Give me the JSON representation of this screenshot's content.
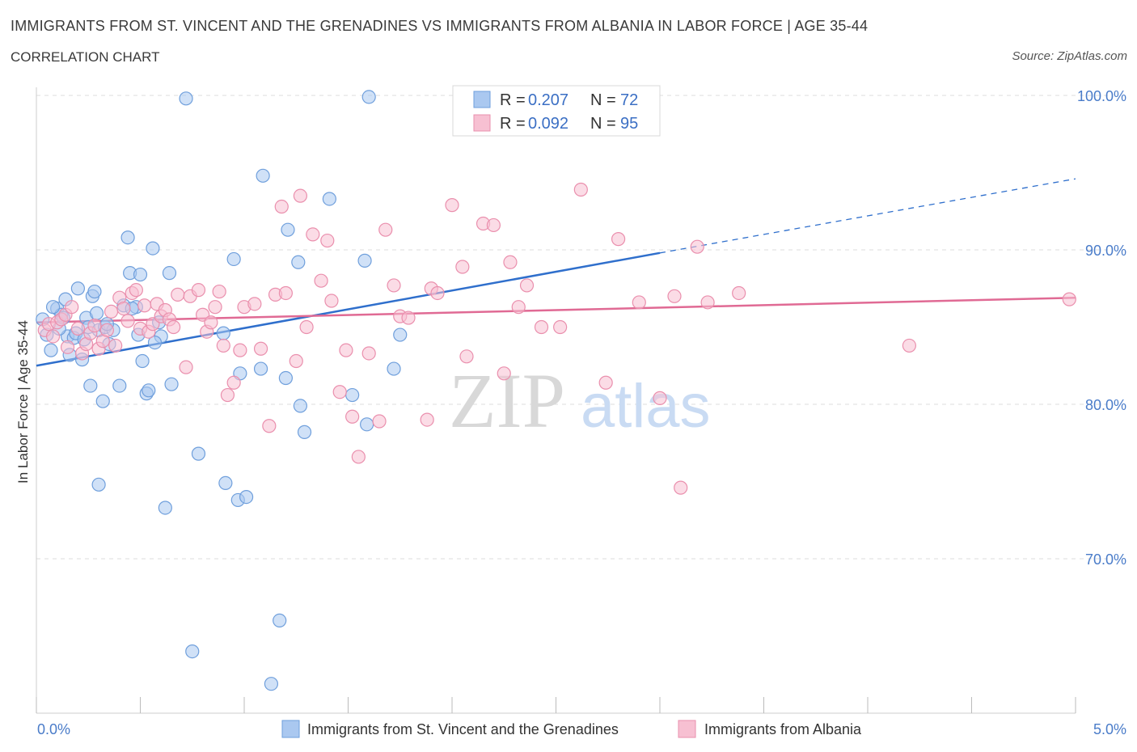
{
  "header": {
    "title": "IMMIGRANTS FROM ST. VINCENT AND THE GRENADINES VS IMMIGRANTS FROM ALBANIA IN LABOR FORCE | AGE 35-44",
    "subtitle": "CORRELATION CHART",
    "source": "Source: ZipAtlas.com"
  },
  "watermark": {
    "zip": "ZIP",
    "atlas": "atlas"
  },
  "legend": {
    "r_label": "R =",
    "n_label": "N =",
    "entries": [
      {
        "r": "0.207",
        "n": "72"
      },
      {
        "r": "0.092",
        "n": "95"
      }
    ]
  },
  "bottom_legend": [
    "Immigrants from St. Vincent and the Grenadines",
    "Immigrants from Albania"
  ],
  "colors": {
    "blue_fill": "#aac8f0",
    "blue_stroke": "#6f9fdc",
    "blue_line": "#2f6fcc",
    "pink_fill": "#f7c0d2",
    "pink_stroke": "#ea8fad",
    "pink_line": "#e06a94",
    "axis_label": "#4a7cc9",
    "grid": "#dddddd"
  },
  "chart_data": {
    "type": "scatter",
    "ylabel": "In Labor Force | Age 35-44",
    "xlim": [
      0,
      5
    ],
    "ylim": [
      60,
      100
    ],
    "x_tick_labels": [
      "0.0%",
      "5.0%"
    ],
    "y_tick_labels": [
      "70.0%",
      "80.0%",
      "90.0%",
      "100.0%"
    ],
    "y_ticks": [
      70,
      80,
      90,
      100
    ],
    "grid": true,
    "legend_position": "top-center",
    "series": [
      {
        "name": "Immigrants from St. Vincent and the Grenadines",
        "color": "blue",
        "trend": {
          "x0": 0.0,
          "y0": 82.5,
          "x1": 3.0,
          "y1": 89.8,
          "dash_x1": 5.0,
          "dash_y1": 94.6
        },
        "points": [
          [
            0.03,
            85.5
          ],
          [
            0.05,
            84.5
          ],
          [
            0.07,
            83.5
          ],
          [
            0.1,
            86.2
          ],
          [
            0.12,
            85.8
          ],
          [
            0.14,
            86.8
          ],
          [
            0.15,
            84.4
          ],
          [
            0.16,
            83.2
          ],
          [
            0.18,
            84.3
          ],
          [
            0.2,
            87.5
          ],
          [
            0.22,
            82.9
          ],
          [
            0.24,
            85.6
          ],
          [
            0.25,
            85.0
          ],
          [
            0.26,
            81.2
          ],
          [
            0.27,
            87.0
          ],
          [
            0.28,
            87.3
          ],
          [
            0.29,
            85.9
          ],
          [
            0.3,
            84.8
          ],
          [
            0.32,
            80.2
          ],
          [
            0.33,
            85.0
          ],
          [
            0.35,
            83.9
          ],
          [
            0.37,
            84.8
          ],
          [
            0.4,
            81.2
          ],
          [
            0.42,
            86.4
          ],
          [
            0.44,
            90.8
          ],
          [
            0.45,
            88.5
          ],
          [
            0.48,
            86.3
          ],
          [
            0.49,
            84.5
          ],
          [
            0.5,
            88.4
          ],
          [
            0.51,
            82.8
          ],
          [
            0.53,
            80.7
          ],
          [
            0.54,
            80.9
          ],
          [
            0.56,
            90.1
          ],
          [
            0.59,
            85.3
          ],
          [
            0.6,
            84.4
          ],
          [
            0.62,
            73.3
          ],
          [
            0.64,
            88.5
          ],
          [
            0.65,
            81.3
          ],
          [
            0.72,
            99.8
          ],
          [
            0.75,
            64.0
          ],
          [
            0.78,
            76.8
          ],
          [
            0.9,
            84.6
          ],
          [
            0.91,
            74.9
          ],
          [
            0.95,
            89.4
          ],
          [
            0.97,
            73.8
          ],
          [
            0.98,
            82.0
          ],
          [
            1.01,
            74.0
          ],
          [
            1.08,
            82.3
          ],
          [
            1.09,
            94.8
          ],
          [
            1.13,
            61.9
          ],
          [
            1.17,
            66.0
          ],
          [
            1.2,
            81.7
          ],
          [
            1.21,
            91.3
          ],
          [
            1.26,
            89.2
          ],
          [
            1.27,
            79.9
          ],
          [
            1.29,
            78.2
          ],
          [
            1.41,
            93.3
          ],
          [
            1.52,
            80.6
          ],
          [
            1.58,
            89.3
          ],
          [
            1.59,
            78.7
          ],
          [
            1.6,
            99.9
          ],
          [
            1.72,
            82.3
          ],
          [
            1.75,
            84.5
          ],
          [
            0.3,
            74.8
          ],
          [
            0.08,
            86.3
          ],
          [
            0.11,
            84.9
          ],
          [
            0.19,
            84.6
          ],
          [
            0.23,
            84.2
          ],
          [
            0.34,
            85.2
          ],
          [
            0.46,
            86.2
          ],
          [
            0.57,
            84.0
          ],
          [
            0.13,
            85.6
          ]
        ]
      },
      {
        "name": "Immigrants from Albania",
        "color": "pink",
        "trend": {
          "x0": 0.0,
          "y0": 85.3,
          "x1": 5.0,
          "y1": 86.9
        },
        "points": [
          [
            0.04,
            84.8
          ],
          [
            0.06,
            85.2
          ],
          [
            0.08,
            84.4
          ],
          [
            0.1,
            85.3
          ],
          [
            0.12,
            85.5
          ],
          [
            0.14,
            85.8
          ],
          [
            0.15,
            83.7
          ],
          [
            0.17,
            86.3
          ],
          [
            0.2,
            84.9
          ],
          [
            0.22,
            83.3
          ],
          [
            0.24,
            83.9
          ],
          [
            0.26,
            84.6
          ],
          [
            0.28,
            85.1
          ],
          [
            0.3,
            83.6
          ],
          [
            0.32,
            84.1
          ],
          [
            0.34,
            84.8
          ],
          [
            0.36,
            86.0
          ],
          [
            0.38,
            83.8
          ],
          [
            0.4,
            86.9
          ],
          [
            0.42,
            86.2
          ],
          [
            0.44,
            85.4
          ],
          [
            0.46,
            87.2
          ],
          [
            0.48,
            87.4
          ],
          [
            0.5,
            84.9
          ],
          [
            0.52,
            86.4
          ],
          [
            0.54,
            84.7
          ],
          [
            0.56,
            85.2
          ],
          [
            0.58,
            86.5
          ],
          [
            0.6,
            85.7
          ],
          [
            0.62,
            86.1
          ],
          [
            0.64,
            85.5
          ],
          [
            0.66,
            85.0
          ],
          [
            0.68,
            87.1
          ],
          [
            0.72,
            82.4
          ],
          [
            0.74,
            87.0
          ],
          [
            0.78,
            87.4
          ],
          [
            0.8,
            85.8
          ],
          [
            0.82,
            84.7
          ],
          [
            0.84,
            85.3
          ],
          [
            0.86,
            86.3
          ],
          [
            0.88,
            87.3
          ],
          [
            0.9,
            83.8
          ],
          [
            0.92,
            80.6
          ],
          [
            0.95,
            81.4
          ],
          [
            0.98,
            83.5
          ],
          [
            1.0,
            86.3
          ],
          [
            1.05,
            86.5
          ],
          [
            1.08,
            83.6
          ],
          [
            1.12,
            78.6
          ],
          [
            1.15,
            87.1
          ],
          [
            1.18,
            92.8
          ],
          [
            1.2,
            87.2
          ],
          [
            1.25,
            82.8
          ],
          [
            1.27,
            93.5
          ],
          [
            1.3,
            85.0
          ],
          [
            1.33,
            91.0
          ],
          [
            1.37,
            88.0
          ],
          [
            1.4,
            90.6
          ],
          [
            1.42,
            86.7
          ],
          [
            1.46,
            80.8
          ],
          [
            1.49,
            83.5
          ],
          [
            1.52,
            79.2
          ],
          [
            1.55,
            76.6
          ],
          [
            1.6,
            83.3
          ],
          [
            1.65,
            78.9
          ],
          [
            1.68,
            91.3
          ],
          [
            1.72,
            87.7
          ],
          [
            1.75,
            85.7
          ],
          [
            1.79,
            85.6
          ],
          [
            1.88,
            79.0
          ],
          [
            1.9,
            87.5
          ],
          [
            1.93,
            87.2
          ],
          [
            2.0,
            92.9
          ],
          [
            2.05,
            88.9
          ],
          [
            2.07,
            83.1
          ],
          [
            2.15,
            91.7
          ],
          [
            2.2,
            91.6
          ],
          [
            2.25,
            82.0
          ],
          [
            2.28,
            89.2
          ],
          [
            2.32,
            86.3
          ],
          [
            2.36,
            87.7
          ],
          [
            2.43,
            85.0
          ],
          [
            2.52,
            85.0
          ],
          [
            2.62,
            93.9
          ],
          [
            2.74,
            81.4
          ],
          [
            2.8,
            90.7
          ],
          [
            2.9,
            86.6
          ],
          [
            3.0,
            80.4
          ],
          [
            3.07,
            87.0
          ],
          [
            3.1,
            74.6
          ],
          [
            3.18,
            90.2
          ],
          [
            3.23,
            86.6
          ],
          [
            3.38,
            87.2
          ],
          [
            4.2,
            83.8
          ],
          [
            4.97,
            86.8
          ]
        ]
      }
    ]
  }
}
